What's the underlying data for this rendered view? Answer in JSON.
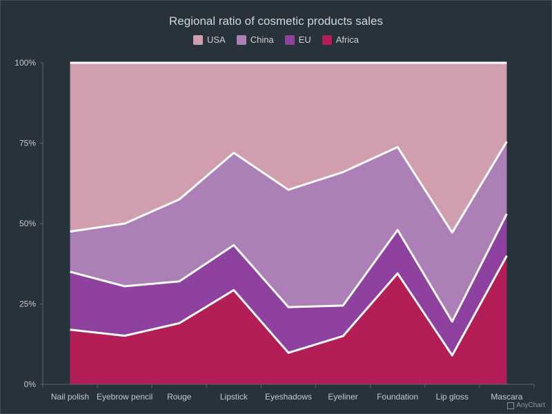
{
  "chart_data": {
    "type": "area",
    "stacking": "percent",
    "title": "Regional ratio of cosmetic products sales",
    "categories": [
      "Nail polish",
      "Eyebrow pencil",
      "Rouge",
      "Lipstick",
      "Eyeshadows",
      "Eyeliner",
      "Foundation",
      "Lip gloss",
      "Mascara"
    ],
    "y_ticks": [
      "0%",
      "25%",
      "50%",
      "75%",
      "100%"
    ],
    "ylim": [
      0,
      100
    ],
    "legend_position": "top-center",
    "series": [
      {
        "name": "USA",
        "color": "#d19eb0",
        "values": [
          52.5,
          50.0,
          42.5,
          28.0,
          39.5,
          34.0,
          26.2,
          52.8,
          24.5
        ]
      },
      {
        "name": "China",
        "color": "#ac80b6",
        "values": [
          12.5,
          19.5,
          25.5,
          28.7,
          36.5,
          41.5,
          25.8,
          27.7,
          22.5
        ]
      },
      {
        "name": "EU",
        "color": "#8f41a0",
        "values": [
          18.0,
          15.4,
          13.0,
          14.0,
          14.2,
          9.5,
          13.5,
          10.5,
          13.0
        ]
      },
      {
        "name": "Africa",
        "color": "#b31e57",
        "values": [
          17.0,
          15.1,
          19.0,
          29.3,
          9.8,
          15.0,
          34.5,
          9.0,
          40.0
        ]
      }
    ],
    "credit": "AnyChart"
  }
}
